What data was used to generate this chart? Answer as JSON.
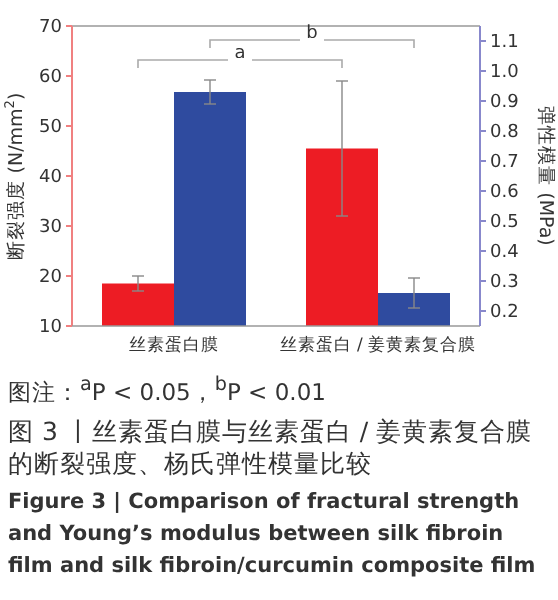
{
  "chart_data": {
    "type": "bar",
    "categories": [
      "丝素蛋白膜",
      "丝素蛋白 / 姜黄素复合膜"
    ],
    "ylabel": "断裂强度 (N/mm$^{2}$)",
    "y2label": "弹性模量 (MPa)",
    "series": [
      {
        "color": "#ed1c24",
        "values": [
          18.5,
          45.5
        ],
        "errors": [
          1.5,
          13.5
        ]
      },
      {
        "color": "#2f4b9f",
        "values": [
          0.93,
          0.26
        ],
        "errors": [
          0.04,
          0.05
        ],
        "axis": "y2"
      }
    ],
    "ylim": [
      10,
      70
    ],
    "yticks": [
      10,
      20,
      30,
      40,
      50,
      60,
      70
    ],
    "y2lim": [
      0.15,
      1.15
    ],
    "y2ticks": [
      0.2,
      0.3,
      0.4,
      0.5,
      0.6,
      0.7,
      0.8,
      0.9,
      {
        "value": 1.0,
        "label": "1.0"
      },
      1.1
    ],
    "grid": false,
    "annotations": [
      "a",
      "b",
      "图注：$^{a}$P < 0.05，$^{b}$P < 0.01",
      "图 3 丨丝素蛋白膜与丝素蛋白 / 姜黄素复合膜的断裂强度、杨氏弹性模量比较",
      "Figure 3 | Comparison of fractural strength and Young’s modulus between silk fibroin film and silk fibroin/curcumin composite film"
    ]
  }
}
